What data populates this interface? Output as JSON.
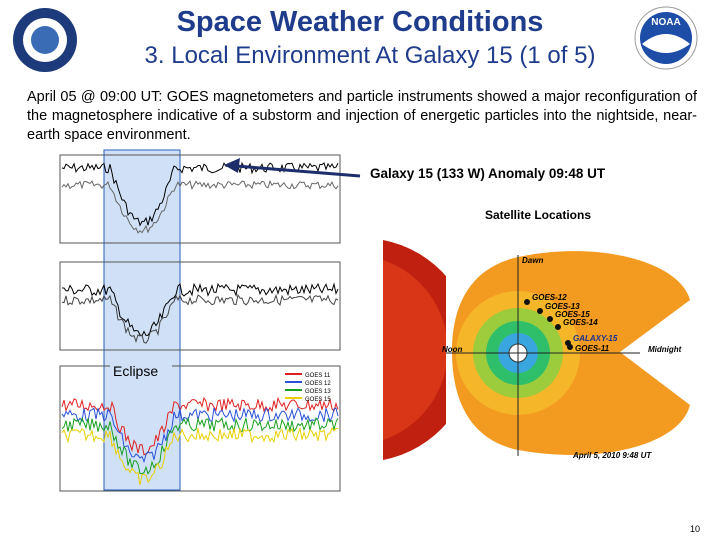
{
  "logo": "NOAA",
  "header": {
    "title": "Space Weather Conditions",
    "subtitle": "3. Local Environment At Galaxy 15 (1 of 5)"
  },
  "body": {
    "text": "April 05 @ 09:00 UT: GOES magnetometers and particle instruments showed a major reconfiguration of the magnetosphere  indicative of a substorm and injection of energetic particles into the nightside, near-earth space environment."
  },
  "callout": "Galaxy 15 (133 W) Anomaly 09:48 UT",
  "figure": {
    "title": "Satellite Locations",
    "satellites": [
      "GOES-12",
      "GOES-13",
      "GOES-15",
      "GOES-14",
      "GALAXY-15",
      "GOES-11"
    ],
    "noon": "Noon",
    "midnight": "Midnight",
    "dawn": "Dawn",
    "timestamp": "April 5, 2010  9:48 UT"
  },
  "plot": {
    "eclipse": "Eclipse",
    "legend": [
      "GOES 11",
      "GOES 12",
      "GOES 13",
      "GOES 15"
    ]
  },
  "page_number": "10"
}
